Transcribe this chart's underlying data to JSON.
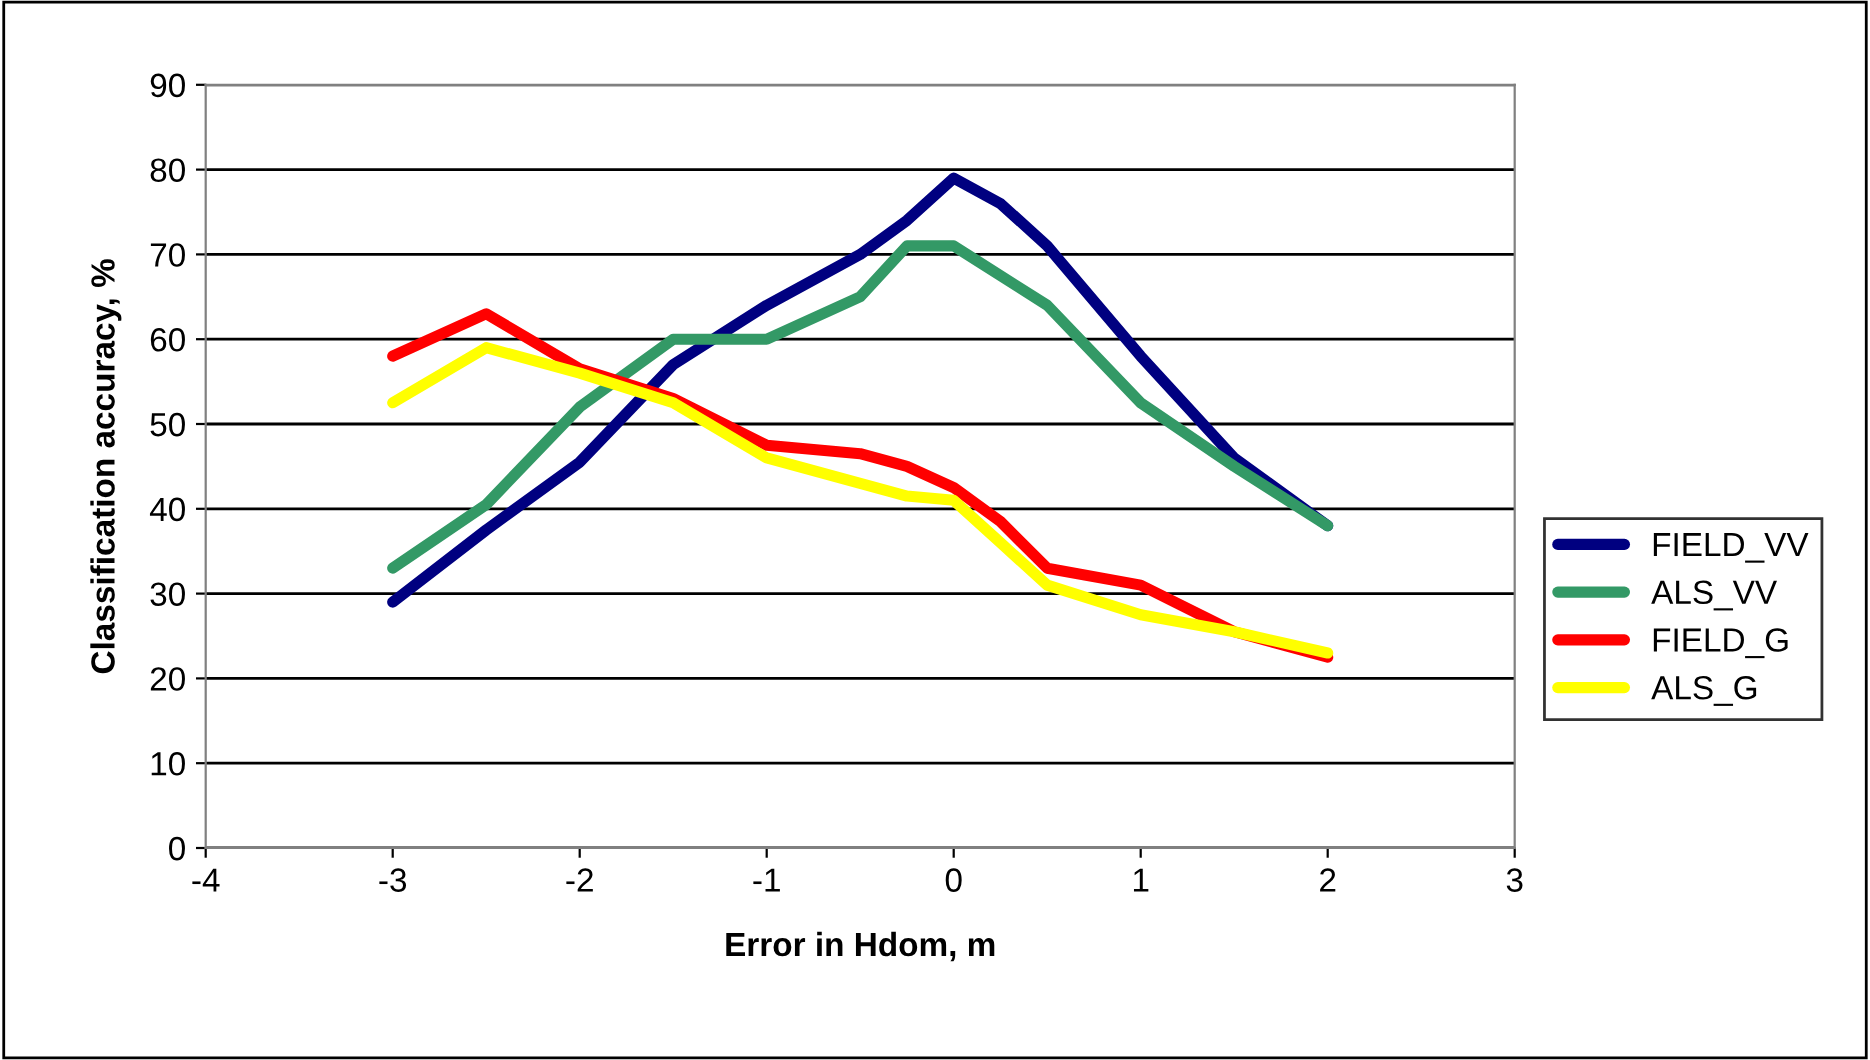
{
  "chart_data": {
    "type": "line",
    "xlabel": "Error in Hdom, m",
    "ylabel": "Classification accuracy, %",
    "x": [
      -3,
      -2.5,
      -2,
      -1.5,
      -1,
      -0.5,
      -0.25,
      0,
      0.25,
      0.5,
      1,
      1.5,
      2
    ],
    "series": [
      {
        "name": "FIELD_VV",
        "color": "#000080",
        "values": [
          29,
          37.5,
          45.5,
          57,
          64,
          70,
          74,
          79,
          76,
          71,
          58,
          46,
          38
        ]
      },
      {
        "name": "ALS_VV",
        "color": "#339966",
        "x": [
          -3,
          -2.5,
          -2,
          -1.5,
          -1,
          -0.5,
          -0.25,
          0,
          0.5,
          1,
          1.5,
          2
        ],
        "values": [
          33,
          40.5,
          52,
          60,
          60,
          65,
          71,
          71,
          64,
          52.5,
          45,
          38
        ]
      },
      {
        "name": "FIELD_G",
        "color": "#ff0000",
        "values": [
          58,
          63,
          56.5,
          53,
          47.5,
          46.5,
          45,
          42.5,
          38.5,
          33,
          31,
          25.5,
          22.5
        ]
      },
      {
        "name": "ALS_G",
        "color": "#ffff00",
        "values": [
          52.5,
          59,
          56,
          52.5,
          46,
          43,
          41.5,
          41,
          36,
          31,
          27.5,
          25.5,
          23
        ]
      }
    ],
    "xlim": [
      -4,
      3
    ],
    "xticks": [
      -4,
      -3,
      -2,
      -1,
      0,
      1,
      2,
      3
    ],
    "ylim": [
      0,
      90
    ],
    "yticks": [
      0,
      10,
      20,
      30,
      40,
      50,
      60,
      70,
      80,
      90
    ],
    "grid": "y",
    "legend": "right",
    "marker": "none",
    "line_style": "solid"
  }
}
